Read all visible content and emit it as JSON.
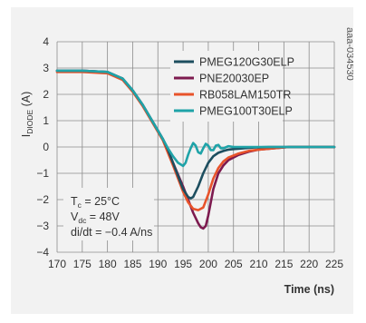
{
  "figure_id": "aaa-034530",
  "chart_data": {
    "type": "line",
    "title": "",
    "ylabel_main": "I",
    "ylabel_sub": "DIODE",
    "ylabel_unit": " (A)",
    "xlabel": "Time (ns)",
    "xlim": [
      170,
      225
    ],
    "ylim": [
      -4,
      4
    ],
    "xticks": [
      "170",
      "175",
      "180",
      "185",
      "190",
      "195",
      "200",
      "205",
      "210",
      "215",
      "220",
      "225"
    ],
    "yticks": [
      "−4",
      "−3",
      "−2",
      "−1",
      "0",
      "1",
      "2",
      "3",
      "4"
    ],
    "grid": true,
    "legend_position": "top-right",
    "annotation": {
      "line1_main": "T",
      "line1_sub": "c",
      "line1_rest": " = 25°C",
      "line2_main": "V",
      "line2_sub": "dc",
      "line2_rest": " = 48V",
      "line3": "di/dt = −0.4 A/ns"
    },
    "series": [
      {
        "name": "PMEG120G30ELP",
        "color": "#1d4e5f",
        "x": [
          170,
          175,
          180,
          183,
          185,
          187,
          189,
          191,
          192,
          193,
          194,
          195,
          196,
          196.5,
          197,
          198,
          199,
          200,
          201,
          202,
          203,
          204,
          205,
          207,
          209,
          212,
          215,
          220,
          225
        ],
        "y": [
          2.9,
          2.9,
          2.85,
          2.6,
          2.15,
          1.6,
          0.95,
          0.3,
          -0.1,
          -0.6,
          -1.1,
          -1.6,
          -1.9,
          -1.95,
          -1.9,
          -1.5,
          -1.0,
          -0.6,
          -0.35,
          -0.22,
          -0.15,
          -0.1,
          -0.08,
          -0.05,
          -0.02,
          0,
          0,
          0,
          0
        ]
      },
      {
        "name": "PNE20030EP",
        "color": "#7d1a4f",
        "x": [
          170,
          175,
          180,
          183,
          185,
          187,
          189,
          191,
          193,
          195,
          196,
          197,
          198,
          198.5,
          199,
          199.5,
          200,
          201,
          202,
          203,
          204,
          206,
          208,
          210,
          213,
          216,
          220,
          225
        ],
        "y": [
          2.9,
          2.9,
          2.85,
          2.6,
          2.15,
          1.6,
          0.95,
          0.3,
          -0.6,
          -1.5,
          -2.0,
          -2.5,
          -2.9,
          -3.05,
          -3.1,
          -3.0,
          -2.6,
          -1.6,
          -1.0,
          -0.7,
          -0.5,
          -0.3,
          -0.18,
          -0.1,
          -0.05,
          0,
          0,
          0
        ]
      },
      {
        "name": "RB058LAM150TR",
        "color": "#e8532b",
        "x": [
          170,
          175,
          180,
          183,
          185,
          187,
          189,
          191,
          193,
          195,
          196,
          197,
          198,
          199,
          200,
          201,
          202,
          203,
          204,
          206,
          208,
          210,
          213,
          216,
          220,
          225
        ],
        "y": [
          2.85,
          2.85,
          2.8,
          2.55,
          2.1,
          1.55,
          0.9,
          0.25,
          -0.7,
          -1.7,
          -2.1,
          -2.35,
          -2.4,
          -2.3,
          -1.8,
          -1.2,
          -0.8,
          -0.55,
          -0.4,
          -0.25,
          -0.15,
          -0.1,
          -0.05,
          0,
          0,
          0
        ]
      },
      {
        "name": "PMEG100T30ELP",
        "color": "#1fa3a8",
        "x": [
          170,
          175,
          180,
          183,
          185,
          187,
          189,
          191,
          192,
          193,
          194,
          195,
          195.5,
          196,
          196.5,
          197,
          197.5,
          198,
          198.5,
          199,
          199.5,
          200,
          200.5,
          201,
          201.5,
          202,
          202.5,
          203,
          204,
          205,
          207,
          210,
          215,
          220,
          225
        ],
        "y": [
          2.9,
          2.9,
          2.85,
          2.6,
          2.15,
          1.6,
          0.95,
          0.3,
          -0.05,
          -0.35,
          -0.6,
          -0.72,
          -0.6,
          -0.3,
          -0.05,
          0.15,
          0.05,
          -0.2,
          -0.25,
          -0.05,
          0.12,
          0.05,
          -0.12,
          -0.12,
          0.05,
          0.08,
          -0.05,
          -0.05,
          0.03,
          0,
          0,
          0,
          0,
          0,
          0
        ]
      }
    ]
  }
}
